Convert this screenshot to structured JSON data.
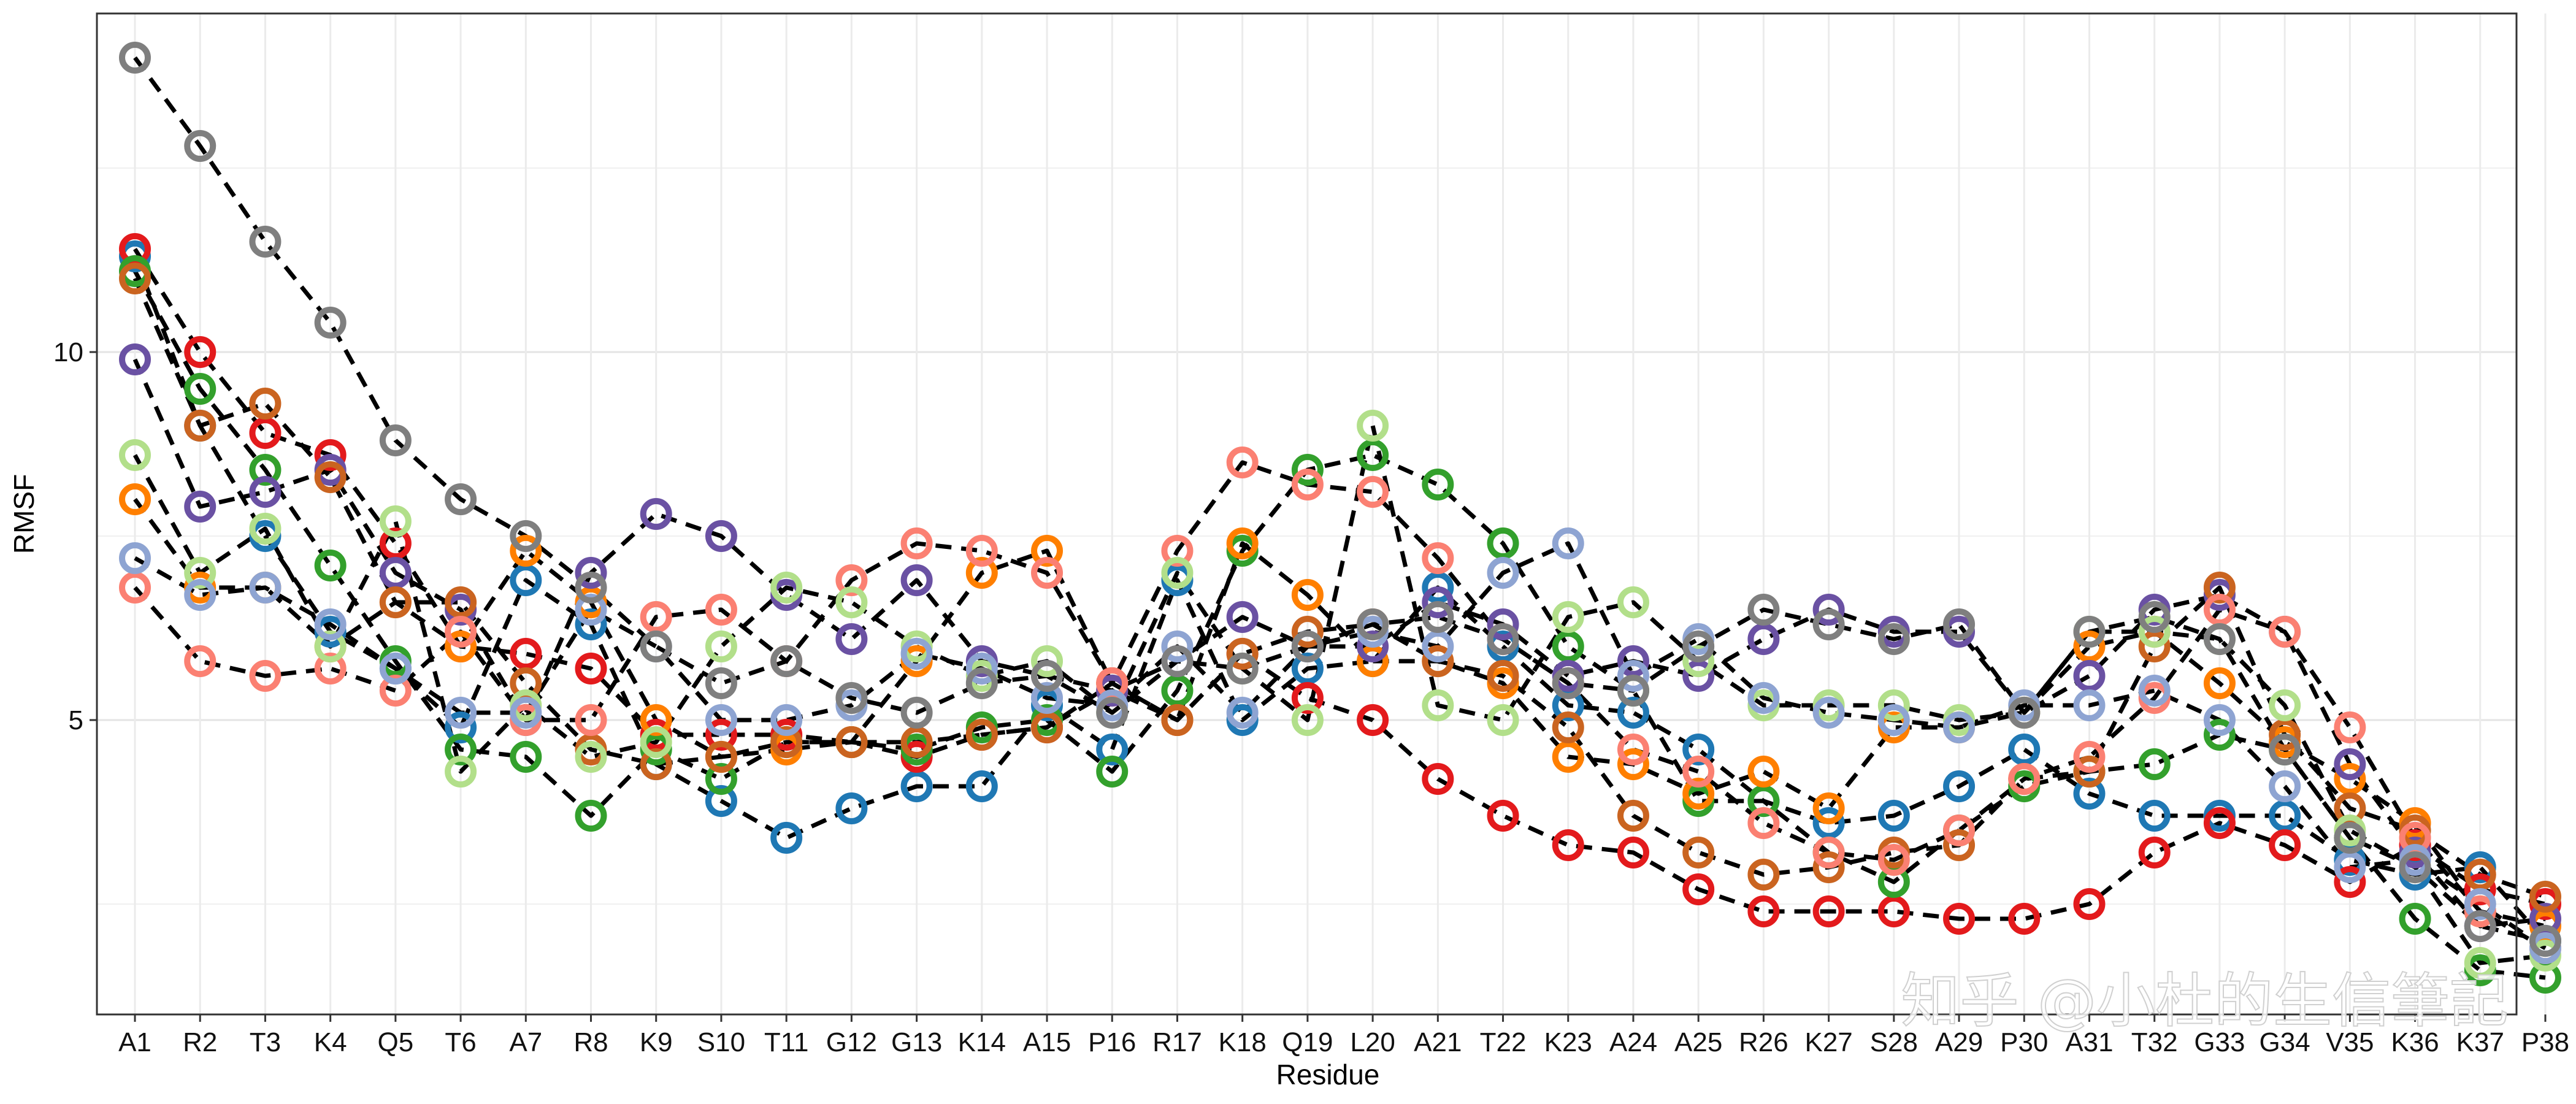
{
  "watermark": "知乎 @小杜的生信筆記",
  "chart_data": {
    "type": "line",
    "title": "",
    "xlabel": "Residue",
    "ylabel": "RMSF",
    "ylim": [
      1.0,
      14.6
    ],
    "yticks": [
      5,
      10
    ],
    "grid": true,
    "legend": "none",
    "line_style": "dashed-black",
    "marker": "open-circle",
    "categories": [
      "A1",
      "R2",
      "T3",
      "K4",
      "Q5",
      "T6",
      "A7",
      "R8",
      "K9",
      "S10",
      "T11",
      "G12",
      "G13",
      "K14",
      "A15",
      "P16",
      "R17",
      "K18",
      "Q19",
      "L20",
      "A21",
      "T22",
      "K23",
      "A24",
      "A25",
      "R26",
      "K27",
      "S28",
      "A29",
      "P30",
      "A31",
      "T32",
      "G33",
      "G34",
      "V35",
      "K36",
      "K37",
      "P38"
    ],
    "series": [
      {
        "color": "#1f78b4",
        "values": [
          11.3,
          9.0,
          7.5,
          6.2,
          5.7,
          4.9,
          6.9,
          6.3,
          4.4,
          3.9,
          3.4,
          3.8,
          4.1,
          4.1,
          5.2,
          4.6,
          6.9,
          5.0,
          5.7,
          5.8,
          6.8,
          6.0,
          5.2,
          5.1,
          4.6,
          3.9,
          3.6,
          3.7,
          4.1,
          4.6,
          4.0,
          3.7,
          3.7,
          3.7,
          3.1,
          2.9,
          3.0,
          2.0
        ]
      },
      {
        "color": "#e31a1c",
        "values": [
          11.4,
          10.0,
          8.9,
          8.6,
          7.4,
          6.0,
          5.9,
          5.7,
          4.8,
          4.8,
          4.8,
          4.7,
          4.5,
          4.8,
          4.9,
          5.4,
          5.0,
          5.9,
          5.3,
          5.0,
          4.2,
          3.7,
          3.3,
          3.2,
          2.7,
          2.4,
          2.4,
          2.4,
          2.3,
          2.3,
          2.5,
          3.2,
          3.6,
          3.3,
          2.8,
          3.3,
          2.7,
          2.5
        ]
      },
      {
        "color": "#33a02c",
        "values": [
          11.1,
          9.5,
          8.4,
          7.1,
          5.8,
          4.6,
          4.5,
          3.7,
          4.6,
          4.2,
          4.7,
          4.7,
          4.6,
          4.9,
          5.0,
          4.3,
          5.4,
          7.3,
          8.4,
          8.6,
          8.2,
          7.4,
          6.0,
          5.4,
          3.9,
          3.9,
          3.2,
          2.8,
          3.5,
          4.1,
          4.3,
          4.4,
          4.8,
          4.6,
          3.4,
          2.3,
          1.6,
          1.5
        ]
      },
      {
        "color": "#ff7f00",
        "values": [
          8.0,
          6.8,
          6.8,
          6.0,
          6.6,
          6.0,
          7.3,
          6.6,
          5.0,
          4.5,
          4.6,
          4.7,
          5.8,
          7.0,
          7.3,
          5.5,
          5.0,
          7.4,
          6.7,
          5.8,
          5.8,
          5.5,
          4.5,
          4.4,
          4.0,
          4.3,
          3.8,
          4.9,
          4.9,
          5.1,
          6.0,
          6.2,
          5.5,
          4.7,
          4.2,
          3.6,
          2.4,
          2.2
        ]
      },
      {
        "color": "#6a51a3",
        "values": [
          9.9,
          7.9,
          8.1,
          8.4,
          7.0,
          6.5,
          5.0,
          7.0,
          7.8,
          7.5,
          6.7,
          6.1,
          6.9,
          5.8,
          5.6,
          5.4,
          5.8,
          6.4,
          6.0,
          6.0,
          6.6,
          6.3,
          5.6,
          5.8,
          5.6,
          6.1,
          6.5,
          6.2,
          6.2,
          5.1,
          5.6,
          6.5,
          6.7,
          6.2,
          4.4,
          3.2,
          2.2,
          2.3
        ]
      },
      {
        "color": "#ca6420",
        "values": [
          11.0,
          9.0,
          9.3,
          8.3,
          6.6,
          6.6,
          5.5,
          4.6,
          4.4,
          4.5,
          4.7,
          4.7,
          4.7,
          4.8,
          4.9,
          5.5,
          5.0,
          5.9,
          6.2,
          6.3,
          5.8,
          5.6,
          4.9,
          3.7,
          3.2,
          2.9,
          3.0,
          3.2,
          3.3,
          4.2,
          4.3,
          6.0,
          6.8,
          4.8,
          3.8,
          3.5,
          2.9,
          2.6
        ]
      },
      {
        "color": "#fb8072",
        "values": [
          6.8,
          5.8,
          5.6,
          5.7,
          5.4,
          6.2,
          5.0,
          5.0,
          6.4,
          6.5,
          5.8,
          6.9,
          7.4,
          7.3,
          7.0,
          5.5,
          7.3,
          8.5,
          8.2,
          8.1,
          7.2,
          6.1,
          5.5,
          4.6,
          4.3,
          3.6,
          3.2,
          3.1,
          3.5,
          4.2,
          4.5,
          5.3,
          6.5,
          6.2,
          4.9,
          3.4,
          2.4,
          1.9
        ]
      },
      {
        "color": "#b2df8a",
        "values": [
          8.6,
          7.0,
          7.6,
          6.0,
          7.7,
          4.3,
          5.2,
          4.5,
          4.7,
          6.0,
          6.8,
          6.6,
          6.0,
          5.6,
          5.8,
          5.1,
          7.0,
          5.7,
          5.0,
          9.0,
          5.2,
          5.0,
          6.4,
          6.6,
          5.8,
          5.2,
          5.2,
          5.2,
          5.0,
          5.1,
          6.2,
          6.2,
          6.1,
          5.2,
          3.5,
          3.0,
          1.7,
          1.8
        ]
      },
      {
        "color": "#8ea4d2",
        "values": [
          7.2,
          6.7,
          6.8,
          6.3,
          5.7,
          5.1,
          5.1,
          6.5,
          6.0,
          5.0,
          5.0,
          5.2,
          5.9,
          5.7,
          5.3,
          5.2,
          6.0,
          5.1,
          6.0,
          6.2,
          6.0,
          7.0,
          7.4,
          5.6,
          6.1,
          5.3,
          5.1,
          5.0,
          4.9,
          5.2,
          5.2,
          5.4,
          5.0,
          4.1,
          3.0,
          3.1,
          2.5,
          1.9
        ]
      },
      {
        "color": "#7f7f7f",
        "values": [
          14.0,
          12.8,
          11.5,
          10.4,
          8.8,
          8.0,
          7.5,
          6.8,
          6.0,
          5.5,
          5.8,
          5.3,
          5.1,
          5.5,
          5.6,
          5.1,
          5.8,
          5.7,
          6.0,
          6.3,
          6.4,
          6.1,
          5.5,
          5.4,
          6.0,
          6.5,
          6.3,
          6.1,
          6.3,
          5.1,
          6.2,
          6.4,
          6.1,
          4.6,
          3.4,
          3.0,
          2.2,
          2.0
        ]
      }
    ]
  }
}
